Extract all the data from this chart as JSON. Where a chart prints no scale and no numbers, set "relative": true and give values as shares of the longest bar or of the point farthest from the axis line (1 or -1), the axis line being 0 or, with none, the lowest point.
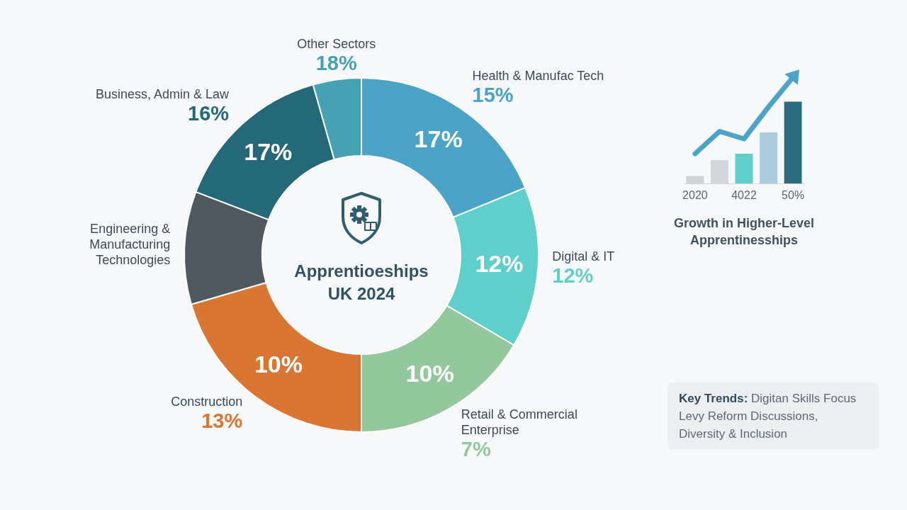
{
  "chart_data": [
    {
      "type": "donut",
      "title": "Apprentioeships",
      "subtitle": "UK 2024",
      "categories": [
        "Health & Manufac Tech",
        "Digital & IT",
        "Retail & Commercial Enterprise",
        "Construction",
        "Engineering & Manufacturing Technologies",
        "Business, Admin & Law",
        "Other Sectors"
      ],
      "values": [
        18.8,
        14.7,
        16.5,
        20.5,
        10.3,
        14.8,
        4.4
      ],
      "colors": [
        "#4ba3c7",
        "#5ecfca",
        "#93c89c",
        "#d97634",
        "#4f5a60",
        "#24687a",
        "#46a2b0"
      ],
      "annotations": [
        {
          "text": "15%",
          "x": "Health & Manufac Tech"
        },
        {
          "text": "12%",
          "x": "Digital & IT"
        },
        {
          "text": "7%",
          "x": "Retail & Commercial Enterprise"
        },
        {
          "text": "13%",
          "x": "Construction"
        },
        {
          "text": "16%",
          "x": "Business, Admin & Law"
        },
        {
          "text": "18%",
          "x": "Other Sectors"
        },
        {
          "text": "17%",
          "x": "Health & Manufac Tech"
        },
        {
          "text": "12%",
          "x": "Digital & IT"
        },
        {
          "text": "10%",
          "x": "Retail & Commercial Enterprise"
        },
        {
          "text": "10%",
          "x": "Construction"
        },
        {
          "text": "17%",
          "x": "Business, Admin & Law"
        }
      ],
      "legend": false
    },
    {
      "type": "bar",
      "title": "Growth in Higher-Level Apprentinesships",
      "categories": [
        "2020",
        null,
        "4022",
        null,
        "50%"
      ],
      "relative": true,
      "series": [
        {
          "type": "bar",
          "colors": [
            "#cfd3d8",
            "#d3d6da",
            "#5ecfca",
            "#a9cbdc",
            "#2c6a80"
          ],
          "values": [
            0.07,
            0.22,
            0.28,
            0.48,
            0.77
          ]
        },
        {
          "type": "line",
          "color": "#4ba3c7",
          "values": [
            0.28,
            0.49,
            0.42,
            0.72,
            1
          ]
        }
      ]
    },
    {
      "type": "other",
      "title": "Key Trends:",
      "annotations": [
        "Digitan Skills Focus",
        "Levy Reform Discussions,",
        "Diversity & Inclusion"
      ]
    }
  ]
}
